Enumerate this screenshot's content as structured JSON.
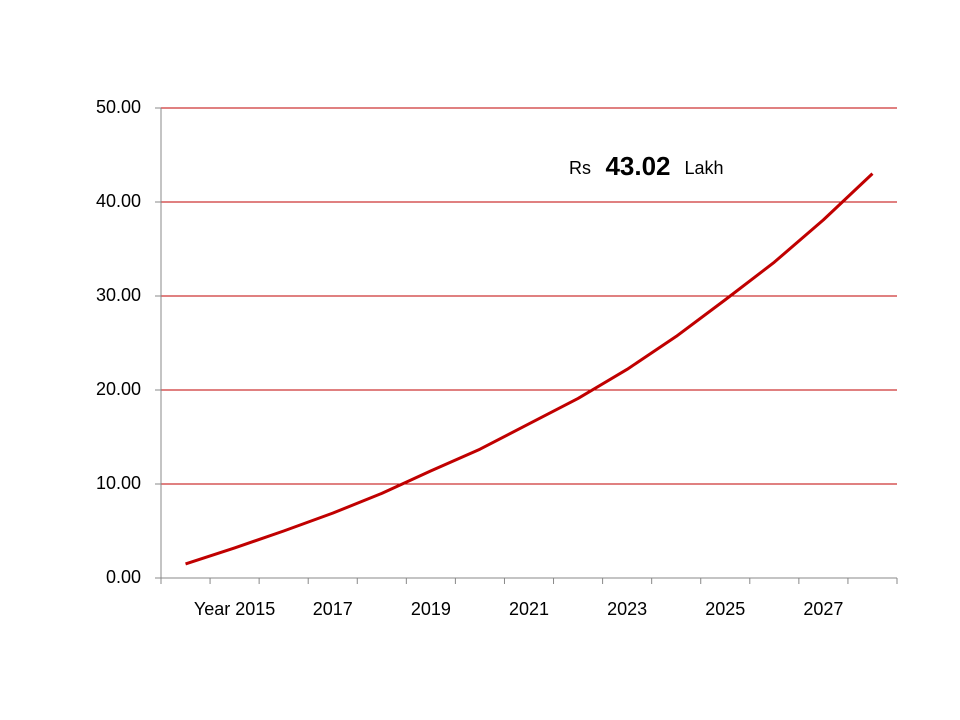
{
  "chart_data": {
    "type": "line",
    "categories": [
      null,
      "Year 2015",
      null,
      "2017",
      null,
      "2019",
      null,
      "2021",
      null,
      "2023",
      null,
      "2025",
      null,
      "2027",
      null
    ],
    "series": [
      {
        "name": null,
        "color": "#c00000",
        "values": [
          1.5,
          3.2,
          5.0,
          6.9,
          9.0,
          11.4,
          13.7,
          16.4,
          19.1,
          22.2,
          25.7,
          29.6,
          33.6,
          38.1,
          43.02
        ]
      }
    ],
    "ylim": [
      0,
      50
    ],
    "yticks": [
      {
        "value": 0,
        "label": "0.00"
      },
      {
        "value": 10,
        "label": "10.00"
      },
      {
        "value": 20,
        "label": "20.00"
      },
      {
        "value": 30,
        "label": "30.00"
      },
      {
        "value": 40,
        "label": "40.00"
      },
      {
        "value": 50,
        "label": "50.00"
      }
    ],
    "grid": true,
    "grid_color": "#c00000",
    "annotation": {
      "prefix": "Rs",
      "text": "43.02",
      "suffix": "Lakh",
      "color": "#ff0000"
    }
  }
}
